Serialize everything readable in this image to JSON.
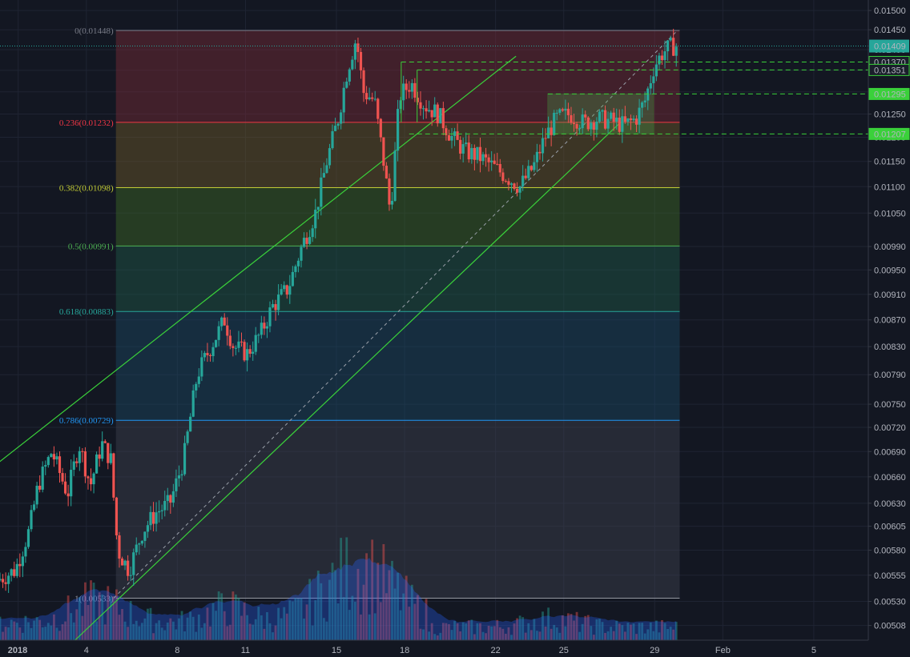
{
  "chart_data": {
    "type": "candlestick",
    "title": "",
    "x_ticks": [
      {
        "label": "2018",
        "day": 1
      },
      {
        "label": "4",
        "day": 4
      },
      {
        "label": "8",
        "day": 8
      },
      {
        "label": "11",
        "day": 11
      },
      {
        "label": "15",
        "day": 15
      },
      {
        "label": "18",
        "day": 18
      },
      {
        "label": "22",
        "day": 22
      },
      {
        "label": "25",
        "day": 25
      },
      {
        "label": "29",
        "day": 29
      },
      {
        "label": "Feb",
        "day": 32
      },
      {
        "label": "5",
        "day": 36
      }
    ],
    "y_ticks": [
      "0.01500",
      "0.01450",
      "0.01400",
      "0.01350",
      "0.01300",
      "0.01250",
      "0.01200",
      "0.01150",
      "0.01100",
      "0.01050",
      "0.00990",
      "0.00950",
      "0.00910",
      "0.00870",
      "0.00830",
      "0.00790",
      "0.00750",
      "0.00720",
      "0.00690",
      "0.00660",
      "0.00630",
      "0.00605",
      "0.00580",
      "0.00555",
      "0.00530",
      "0.00508"
    ],
    "y_scale": "log",
    "y_range": [
      0.00495,
      0.01528
    ],
    "x_range_days": [
      0.2,
      38.4
    ],
    "last_price": "0.01409",
    "price_levels": [
      {
        "label": "0.01370",
        "value": 0.0137,
        "from_day": 17.85
      },
      {
        "label": "0.01351",
        "value": 0.01351,
        "from_day": 18.55
      },
      {
        "label": "0.01295",
        "value": 0.01295,
        "from_day": 24.3
      },
      {
        "label": "0.01207",
        "value": 0.01207,
        "from_day": 18.2
      }
    ],
    "fib_retracement": {
      "from_day": 5.3,
      "to_day": 30.1,
      "levels": [
        {
          "label": "0(0.01448)",
          "value": 0.01448,
          "color": "#787b86"
        },
        {
          "label": "0.236(0.01232)",
          "value": 0.01232,
          "color": "#f23645"
        },
        {
          "label": "0.382(0.01098)",
          "value": 0.01098,
          "color": "#c0ca33"
        },
        {
          "label": "0.5(0.00991)",
          "value": 0.00991,
          "color": "#4caf50"
        },
        {
          "label": "0.618(0.00883)",
          "value": 0.00883,
          "color": "#26a69a"
        },
        {
          "label": "0.786(0.00729)",
          "value": 0.00729,
          "color": "#2196f3"
        },
        {
          "label": "1(0.00533)",
          "value": 0.00533,
          "color": "#9598a1"
        }
      ],
      "band_colors": [
        "#7a2c38",
        "#6e5a2a",
        "#3f6b25",
        "#1e5a4a",
        "#1b4a63",
        "#3f4250"
      ]
    },
    "channel_lines": [
      {
        "x1": -1,
        "y1": 0.00653,
        "x2": 22.9,
        "y2": 0.01384
      },
      {
        "x1": 3.5,
        "y1": 0.00495,
        "x2": 27.5,
        "y2": 0.01232
      }
    ],
    "channel_midline": {
      "x1": 5.2,
      "y1": 0.00533,
      "x2": 30.0,
      "y2": 0.01448
    },
    "consolidation_box": {
      "day_start": 24.3,
      "day_end": 28.95,
      "low": 0.01207,
      "high": 0.01295
    },
    "candles": [],
    "volume": []
  }
}
